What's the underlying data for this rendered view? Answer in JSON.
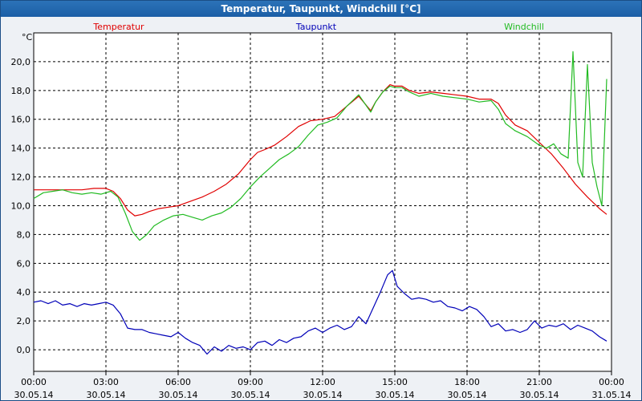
{
  "window": {
    "title": "Temperatur, Taupunkt, Windchill [°C]"
  },
  "chart_data": {
    "type": "line",
    "title": "Temperatur, Taupunkt, Windchill [°C]",
    "ylabel": "°C",
    "ylim": [
      -1.5,
      22.0
    ],
    "xlim_hours": [
      0,
      24
    ],
    "grid": true,
    "y_ticks": [
      "0,0",
      "2,0",
      "4,0",
      "6,0",
      "8,0",
      "10,0",
      "12,0",
      "14,0",
      "16,0",
      "18,0",
      "20,0"
    ],
    "y_tick_values": [
      0,
      2,
      4,
      6,
      8,
      10,
      12,
      14,
      16,
      18,
      20
    ],
    "x_ticks": [
      {
        "time": "00:00",
        "date": "30.05.14",
        "h": 0
      },
      {
        "time": "03:00",
        "date": "30.05.14",
        "h": 3
      },
      {
        "time": "06:00",
        "date": "30.05.14",
        "h": 6
      },
      {
        "time": "09:00",
        "date": "30.05.14",
        "h": 9
      },
      {
        "time": "12:00",
        "date": "30.05.14",
        "h": 12
      },
      {
        "time": "15:00",
        "date": "30.05.14",
        "h": 15
      },
      {
        "time": "18:00",
        "date": "30.05.14",
        "h": 18
      },
      {
        "time": "21:00",
        "date": "30.05.14",
        "h": 21
      },
      {
        "time": "00:00",
        "date": "31.05.14",
        "h": 24
      }
    ],
    "series": [
      {
        "name": "Temperatur",
        "color": "#e00000",
        "x": [
          0,
          0.5,
          1,
          1.5,
          2,
          2.5,
          3,
          3.3,
          3.6,
          3.9,
          4.2,
          4.5,
          4.8,
          5.2,
          5.6,
          6,
          6.5,
          7,
          7.5,
          8,
          8.5,
          9,
          9.3,
          9.6,
          10,
          10.5,
          11,
          11.5,
          12,
          12.5,
          13,
          13.5,
          14,
          14.2,
          14.5,
          14.8,
          15,
          15.3,
          15.6,
          16,
          16.5,
          17,
          17.5,
          18,
          18.5,
          19,
          19.3,
          19.6,
          20,
          20.5,
          21,
          21.5,
          22,
          22.5,
          23,
          23.5,
          23.8
        ],
        "values": [
          11.1,
          11.1,
          11.1,
          11.1,
          11.1,
          11.2,
          11.2,
          11.0,
          10.5,
          9.7,
          9.3,
          9.4,
          9.6,
          9.8,
          9.9,
          10.0,
          10.3,
          10.6,
          11.0,
          11.5,
          12.2,
          13.2,
          13.7,
          13.9,
          14.2,
          14.8,
          15.5,
          15.9,
          16.0,
          16.2,
          16.9,
          17.6,
          16.6,
          17.2,
          17.9,
          18.4,
          18.3,
          18.3,
          18.0,
          17.8,
          17.9,
          17.8,
          17.7,
          17.6,
          17.4,
          17.4,
          17.1,
          16.3,
          15.6,
          15.2,
          14.4,
          13.6,
          12.6,
          11.5,
          10.6,
          9.8,
          9.4
        ]
      },
      {
        "name": "Taupunkt",
        "color": "#0000b8",
        "x": [
          0,
          0.3,
          0.6,
          0.9,
          1.2,
          1.5,
          1.8,
          2.1,
          2.4,
          2.7,
          3.0,
          3.3,
          3.6,
          3.9,
          4.2,
          4.5,
          4.8,
          5.1,
          5.4,
          5.7,
          6.0,
          6.3,
          6.6,
          6.9,
          7.2,
          7.5,
          7.8,
          8.1,
          8.4,
          8.7,
          9.0,
          9.3,
          9.6,
          9.9,
          10.2,
          10.5,
          10.8,
          11.1,
          11.4,
          11.7,
          12.0,
          12.3,
          12.6,
          12.9,
          13.2,
          13.5,
          13.8,
          14.1,
          14.4,
          14.7,
          14.9,
          15.1,
          15.4,
          15.7,
          16.0,
          16.3,
          16.6,
          16.9,
          17.2,
          17.5,
          17.8,
          18.1,
          18.4,
          18.7,
          19.0,
          19.3,
          19.6,
          19.9,
          20.2,
          20.5,
          20.8,
          21.1,
          21.4,
          21.7,
          22.0,
          22.3,
          22.6,
          22.9,
          23.2,
          23.5,
          23.8
        ],
        "values": [
          3.3,
          3.4,
          3.2,
          3.4,
          3.1,
          3.2,
          3.0,
          3.2,
          3.1,
          3.2,
          3.3,
          3.1,
          2.5,
          1.5,
          1.4,
          1.4,
          1.2,
          1.1,
          1.0,
          0.9,
          1.2,
          0.8,
          0.5,
          0.3,
          -0.3,
          0.2,
          -0.1,
          0.3,
          0.1,
          0.2,
          0.0,
          0.5,
          0.6,
          0.3,
          0.7,
          0.5,
          0.8,
          0.9,
          1.3,
          1.5,
          1.2,
          1.5,
          1.7,
          1.4,
          1.6,
          2.3,
          1.8,
          2.9,
          4.0,
          5.2,
          5.5,
          4.4,
          3.9,
          3.5,
          3.6,
          3.5,
          3.3,
          3.4,
          3.0,
          2.9,
          2.7,
          3.0,
          2.8,
          2.3,
          1.6,
          1.8,
          1.3,
          1.4,
          1.2,
          1.4,
          2.0,
          1.5,
          1.7,
          1.6,
          1.8,
          1.4,
          1.7,
          1.5,
          1.3,
          0.9,
          0.6
        ]
      },
      {
        "name": "Windchill",
        "color": "#22bb22",
        "x": [
          0,
          0.4,
          0.8,
          1.2,
          1.6,
          2.0,
          2.4,
          2.8,
          3.2,
          3.5,
          3.8,
          4.1,
          4.4,
          4.7,
          5.0,
          5.4,
          5.8,
          6.2,
          6.6,
          7.0,
          7.4,
          7.8,
          8.2,
          8.6,
          9.0,
          9.4,
          9.8,
          10.2,
          10.6,
          11.0,
          11.4,
          11.8,
          12.2,
          12.6,
          13.0,
          13.5,
          14.0,
          14.2,
          14.5,
          14.8,
          15.0,
          15.3,
          15.6,
          16.0,
          16.5,
          17.0,
          17.5,
          18.0,
          18.5,
          19.0,
          19.3,
          19.6,
          20.0,
          20.5,
          21.0,
          21.3,
          21.6,
          21.9,
          22.2,
          22.4,
          22.6,
          22.8,
          23.0,
          23.2,
          23.4,
          23.6,
          23.8
        ],
        "values": [
          10.5,
          10.9,
          11.0,
          11.1,
          10.9,
          10.8,
          10.9,
          10.8,
          11.0,
          10.6,
          9.5,
          8.2,
          7.6,
          8.0,
          8.6,
          9.0,
          9.3,
          9.4,
          9.2,
          9.0,
          9.3,
          9.5,
          9.9,
          10.5,
          11.3,
          12.0,
          12.6,
          13.2,
          13.6,
          14.1,
          14.9,
          15.6,
          15.8,
          16.1,
          16.9,
          17.7,
          16.5,
          17.2,
          17.9,
          18.3,
          18.2,
          18.2,
          17.9,
          17.6,
          17.8,
          17.6,
          17.5,
          17.4,
          17.2,
          17.3,
          16.7,
          15.7,
          15.2,
          14.8,
          14.2,
          14.0,
          14.3,
          13.6,
          13.3,
          20.7,
          13.0,
          12.0,
          19.8,
          13.0,
          11.3,
          10.0,
          18.8
        ]
      }
    ]
  }
}
